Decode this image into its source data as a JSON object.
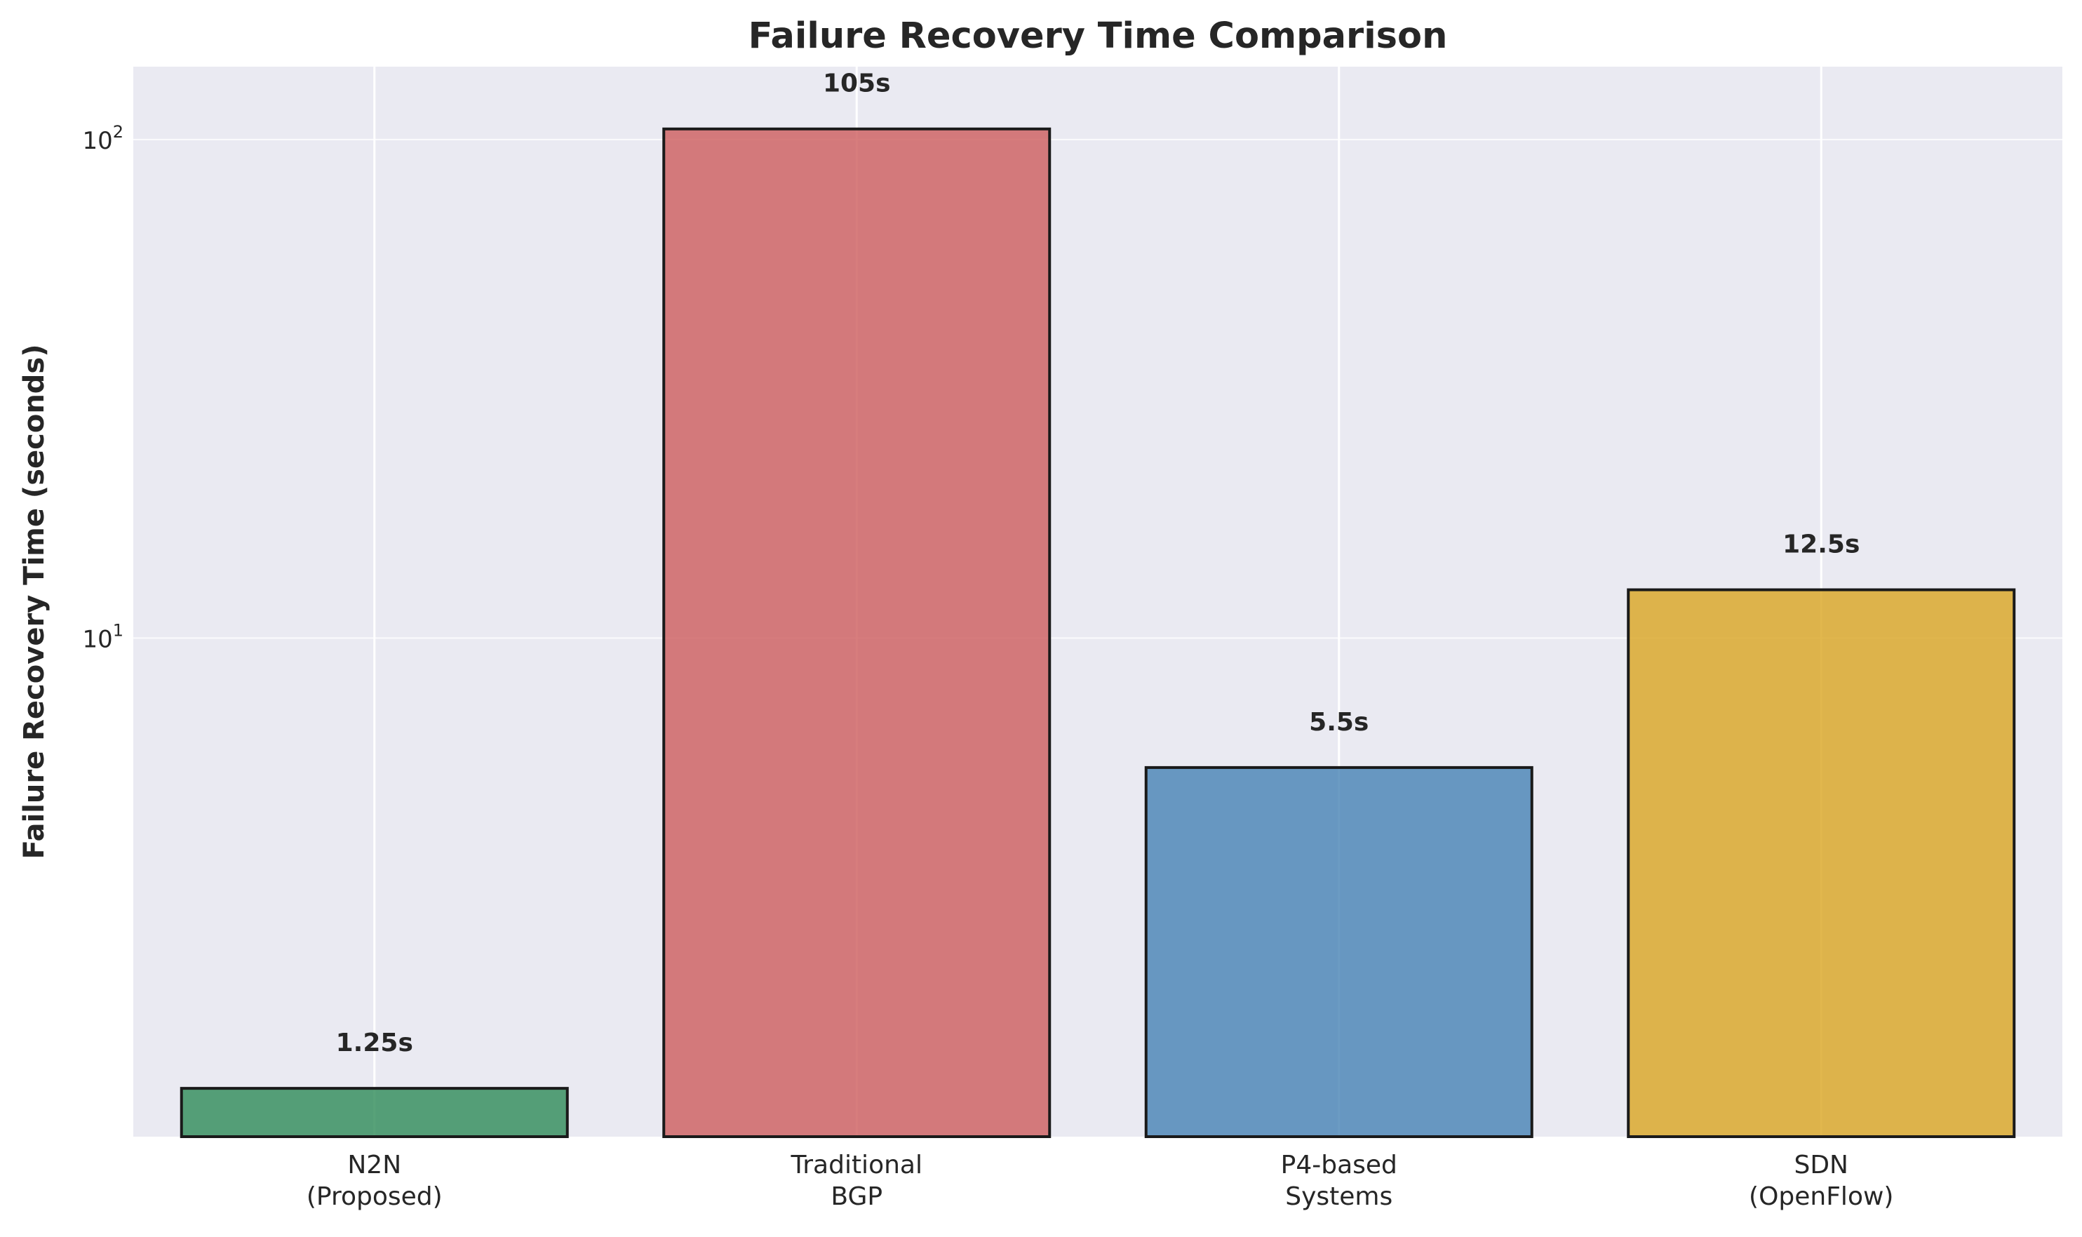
{
  "chart_data": {
    "type": "bar",
    "title": "Failure Recovery Time Comparison",
    "xlabel": "",
    "ylabel": "Failure Recovery Time (seconds)",
    "yscale": "log",
    "ylim": [
      1.0,
      140
    ],
    "yticks": [
      {
        "value": 10,
        "base": "10",
        "exp": "1"
      },
      {
        "value": 100,
        "base": "10",
        "exp": "2"
      }
    ],
    "grid": true,
    "categories": [
      {
        "lines": [
          "N2N",
          "(Proposed)"
        ],
        "value": 1.25,
        "label": "1.25s",
        "color": "#2e8b57"
      },
      {
        "lines": [
          "Traditional",
          "BGP"
        ],
        "value": 105,
        "label": "105s",
        "color": "#cd5c5c"
      },
      {
        "lines": [
          "P4-based",
          "Systems"
        ],
        "value": 5.5,
        "label": "5.5s",
        "color": "#4682b4"
      },
      {
        "lines": [
          "SDN",
          "(OpenFlow)"
        ],
        "value": 12.5,
        "label": "12.5s",
        "color": "#daa520"
      }
    ],
    "plot_background": "#eaeaf2",
    "grid_color": "#ffffff",
    "edge_color": "#1a1a1a"
  }
}
